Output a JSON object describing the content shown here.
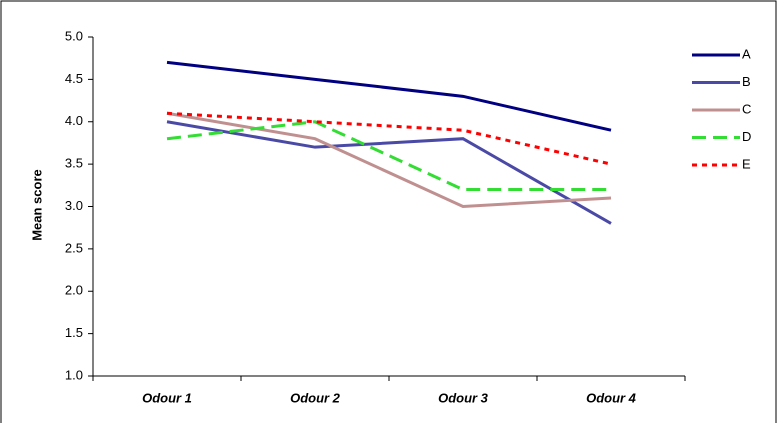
{
  "chart_data": {
    "type": "line",
    "y_label": "Mean score",
    "categories": [
      "Odour 1",
      "Odour 2",
      "Odour 3",
      "Odour 4"
    ],
    "series": [
      {
        "name": "A",
        "color": "#000080",
        "dash": "solid",
        "values": [
          4.7,
          4.5,
          4.3,
          3.9
        ]
      },
      {
        "name": "B",
        "color": "#4a4aa6",
        "dash": "solid",
        "values": [
          4.0,
          3.7,
          3.8,
          2.8
        ]
      },
      {
        "name": "C",
        "color": "#c09090",
        "dash": "solid",
        "values": [
          4.1,
          3.8,
          3.0,
          3.1
        ]
      },
      {
        "name": "D",
        "color": "#33dd33",
        "dash": "long",
        "values": [
          3.8,
          4.0,
          3.2,
          3.2
        ]
      },
      {
        "name": "E",
        "color": "#ff0000",
        "dash": "dot",
        "values": [
          4.1,
          4.0,
          3.9,
          3.5
        ]
      }
    ],
    "ylim": [
      1.0,
      5.0
    ],
    "yticks": [
      {
        "value": 1.0,
        "label": "1.0"
      },
      {
        "value": 1.5,
        "label": "1.5"
      },
      {
        "value": 2.0,
        "label": "2.0"
      },
      {
        "value": 2.5,
        "label": "2.5"
      },
      {
        "value": 3.0,
        "label": "3.0"
      },
      {
        "value": 3.5,
        "label": "3.5"
      },
      {
        "value": 4.0,
        "label": "4.0"
      },
      {
        "value": 4.5,
        "label": "4.5"
      },
      {
        "value": 5.0,
        "label": "5.0"
      }
    ],
    "legend": "right"
  }
}
